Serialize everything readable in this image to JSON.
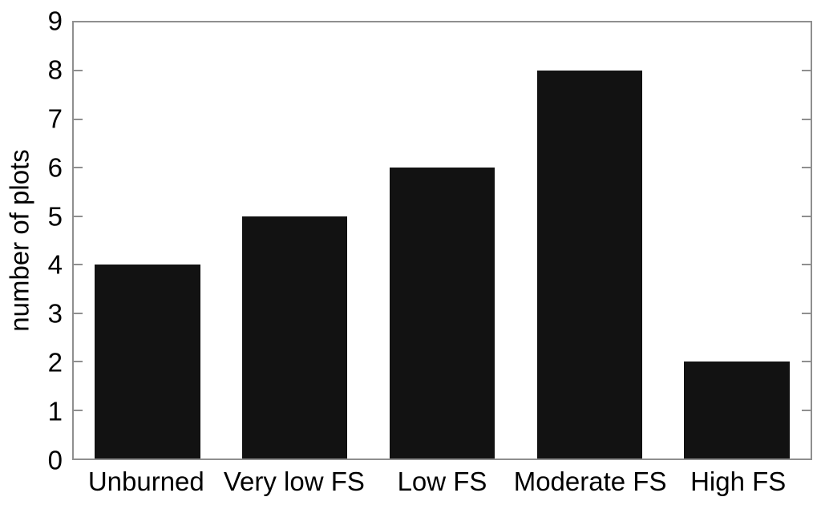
{
  "chart_data": {
    "type": "bar",
    "categories": [
      "Unburned",
      "Very low FS",
      "Low FS",
      "Moderate FS",
      "High FS"
    ],
    "values": [
      4,
      5,
      6,
      8,
      2
    ],
    "title": "",
    "xlabel": "",
    "ylabel": "number of plots",
    "ylim": [
      0,
      9
    ],
    "yticks": [
      0,
      1,
      2,
      3,
      4,
      5,
      6,
      7,
      8,
      9
    ],
    "grid": false,
    "legend": null,
    "layout": {
      "frame": "full box with inward tick marks on left and right axes",
      "bar_slot_fraction": 0.715
    },
    "colors": {
      "bar": "#121212",
      "axis": "#8f8f8f",
      "text": "#000000",
      "background": "#ffffff"
    }
  }
}
